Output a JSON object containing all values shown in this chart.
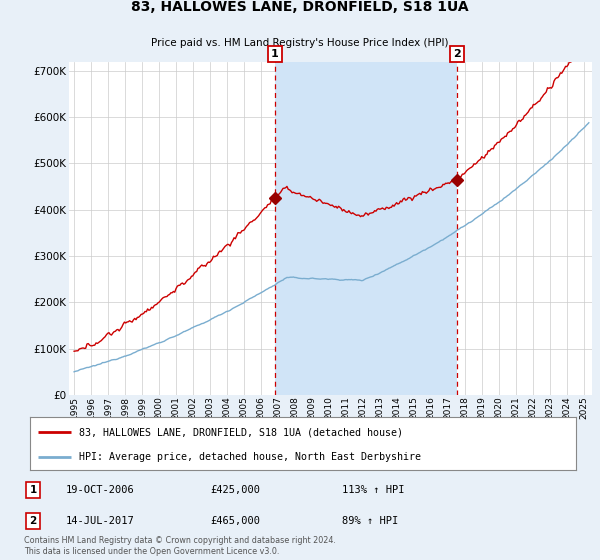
{
  "title": "83, HALLOWES LANE, DRONFIELD, S18 1UA",
  "subtitle": "Price paid vs. HM Land Registry's House Price Index (HPI)",
  "background_color": "#e8f0f8",
  "plot_bg_color": "#ffffff",
  "shade_color": "#d0e4f7",
  "ylim": [
    0,
    720000
  ],
  "yticks": [
    0,
    100000,
    200000,
    300000,
    400000,
    500000,
    600000,
    700000
  ],
  "ytick_labels": [
    "£0",
    "£100K",
    "£200K",
    "£300K",
    "£400K",
    "£500K",
    "£600K",
    "£700K"
  ],
  "xlim_start": 1994.7,
  "xlim_end": 2025.5,
  "xtick_years": [
    1995,
    1996,
    1997,
    1998,
    1999,
    2000,
    2001,
    2002,
    2003,
    2004,
    2005,
    2006,
    2007,
    2008,
    2009,
    2010,
    2011,
    2012,
    2013,
    2014,
    2015,
    2016,
    2017,
    2018,
    2019,
    2020,
    2021,
    2022,
    2023,
    2024,
    2025
  ],
  "sale1_x": 2006.8,
  "sale1_y": 425000,
  "sale2_x": 2017.54,
  "sale2_y": 465000,
  "red_line_color": "#cc0000",
  "blue_line_color": "#7aadcf",
  "vline_color": "#cc0000",
  "grid_color": "#cccccc",
  "marker_color": "#990000",
  "legend_label_red": "83, HALLOWES LANE, DRONFIELD, S18 1UA (detached house)",
  "legend_label_blue": "HPI: Average price, detached house, North East Derbyshire",
  "annotation1_date": "19-OCT-2006",
  "annotation1_price": "£425,000",
  "annotation1_hpi": "113% ↑ HPI",
  "annotation2_date": "14-JUL-2017",
  "annotation2_price": "£465,000",
  "annotation2_hpi": "89% ↑ HPI",
  "footer": "Contains HM Land Registry data © Crown copyright and database right 2024.\nThis data is licensed under the Open Government Licence v3.0."
}
